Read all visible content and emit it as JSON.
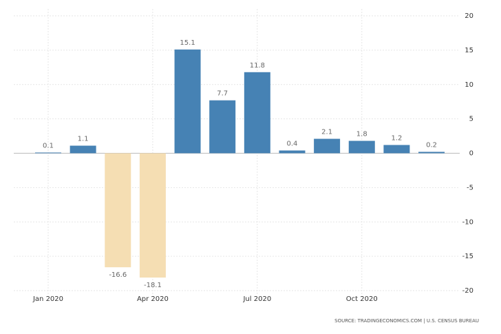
{
  "chart_data": {
    "type": "bar",
    "categories": [
      "Jan 2020",
      null,
      null,
      "Apr 2020",
      null,
      null,
      "Jul 2020",
      null,
      null,
      "Oct 2020",
      null,
      null
    ],
    "values": [
      0.1,
      1.1,
      -16.6,
      -18.1,
      15.1,
      7.7,
      11.8,
      0.4,
      2.1,
      1.8,
      1.2,
      0.2
    ],
    "color": "#4682b4",
    "negative_color": "#f5deb3",
    "ylim": [
      -20,
      20
    ],
    "yticks": [
      -20,
      -15,
      -10,
      -5,
      0,
      5,
      10,
      15,
      20
    ],
    "grid": true,
    "source": "SOURCE: TRADINGECONOMICS.COM | U.S. CENSUS BUREAU"
  }
}
